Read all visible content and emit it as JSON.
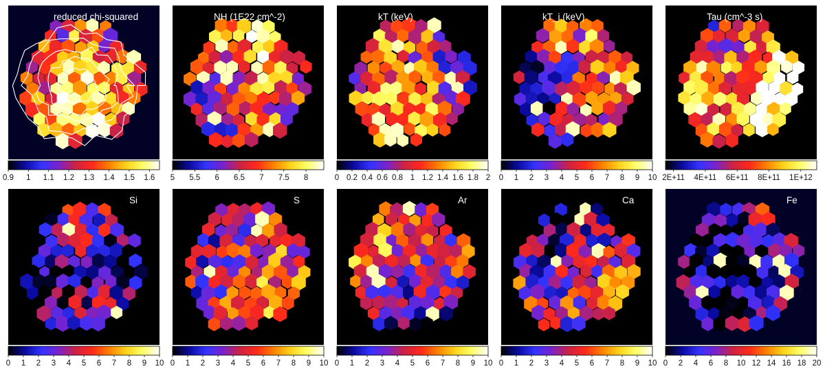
{
  "chart_data": [
    {
      "type": "heatmap",
      "title": "reduced chi-squared",
      "colorbar": {
        "min": 0.9,
        "max": 1.65,
        "ticks": [
          0.9,
          1,
          1.1,
          1.2,
          1.3,
          1.4,
          1.5,
          1.6
        ],
        "tick_labels": [
          "0.9",
          "1",
          "1.1",
          "1.2",
          "1.3",
          "1.4",
          "1.5",
          "1.6"
        ]
      },
      "contours": true,
      "seed": 11,
      "bias": 0.55
    },
    {
      "type": "heatmap",
      "title": "NH (1E22 cm^-2)",
      "colorbar": {
        "min": 5,
        "max": 8.4,
        "ticks": [
          5,
          5.5,
          6,
          6.5,
          7,
          7.5,
          8
        ],
        "tick_labels": [
          "5",
          "5.5",
          "6",
          "6.5",
          "7",
          "7.5",
          "8"
        ]
      },
      "seed": 23,
      "bias": 0.55
    },
    {
      "type": "heatmap",
      "title": "kT (keV)",
      "colorbar": {
        "min": 0,
        "max": 2,
        "ticks": [
          0,
          0.2,
          0.4,
          0.6,
          0.8,
          1,
          1.2,
          1.4,
          1.6,
          1.8,
          2
        ],
        "tick_labels": [
          "0",
          "0.2",
          "0.4",
          "0.6",
          "0.8",
          "1",
          "1.2",
          "1.4",
          "1.6",
          "1.8",
          "2"
        ]
      },
      "seed": 37,
      "bias": 0.6
    },
    {
      "type": "heatmap",
      "title": "kT_i (keV)",
      "colorbar": {
        "min": 0,
        "max": 10,
        "ticks": [
          0,
          1,
          2,
          3,
          4,
          5,
          6,
          7,
          8,
          9,
          10
        ],
        "tick_labels": [
          "0",
          "1",
          "2",
          "3",
          "4",
          "5",
          "6",
          "7",
          "8",
          "9",
          "10"
        ]
      },
      "seed": 41,
      "bias": 0.5
    },
    {
      "type": "heatmap",
      "title": "Tau (cm^-3 s)",
      "colorbar": {
        "min": 150000000000.0,
        "max": 1100000000000.0,
        "ticks": [
          200000000000.0,
          400000000000.0,
          600000000000.0,
          800000000000.0,
          1000000000000.0
        ],
        "tick_labels": [
          "2E+11",
          "4E+11",
          "6E+11",
          "8E+11",
          "1E+12"
        ]
      },
      "seed": 53,
      "bias": 0.7
    },
    {
      "type": "heatmap",
      "title": "Si",
      "colorbar": {
        "min": 0,
        "max": 10,
        "ticks": [
          0,
          1,
          2,
          3,
          4,
          5,
          6,
          7,
          8,
          9,
          10
        ],
        "tick_labels": [
          "0",
          "1",
          "2",
          "3",
          "4",
          "5",
          "6",
          "7",
          "8",
          "9",
          "10"
        ]
      },
      "seed": 61,
      "bias": 0.25
    },
    {
      "type": "heatmap",
      "title": "S",
      "colorbar": {
        "min": 0,
        "max": 10,
        "ticks": [
          0,
          1,
          2,
          3,
          4,
          5,
          6,
          7,
          8,
          9,
          10
        ],
        "tick_labels": [
          "0",
          "1",
          "2",
          "3",
          "4",
          "5",
          "6",
          "7",
          "8",
          "9",
          "10"
        ]
      },
      "seed": 73,
      "bias": 0.38
    },
    {
      "type": "heatmap",
      "title": "Ar",
      "colorbar": {
        "min": 0,
        "max": 10,
        "ticks": [
          0,
          1,
          2,
          3,
          4,
          5,
          6,
          7,
          8,
          9,
          10
        ],
        "tick_labels": [
          "0",
          "1",
          "2",
          "3",
          "4",
          "5",
          "6",
          "7",
          "8",
          "9",
          "10"
        ]
      },
      "seed": 89,
      "bias": 0.45
    },
    {
      "type": "heatmap",
      "title": "Ca",
      "colorbar": {
        "min": 0,
        "max": 10,
        "ticks": [
          0,
          1,
          2,
          3,
          4,
          5,
          6,
          7,
          8,
          9,
          10
        ],
        "tick_labels": [
          "0",
          "1",
          "2",
          "3",
          "4",
          "5",
          "6",
          "7",
          "8",
          "9",
          "10"
        ]
      },
      "seed": 97,
      "bias": 0.42
    },
    {
      "type": "heatmap",
      "title": "Fe",
      "colorbar": {
        "min": 0,
        "max": 20,
        "ticks": [
          0,
          2,
          4,
          6,
          8,
          10,
          12,
          14,
          16,
          18,
          20
        ],
        "tick_labels": [
          "0",
          "2",
          "4",
          "6",
          "8",
          "10",
          "12",
          "14",
          "16",
          "18",
          "20"
        ]
      },
      "seed": 103,
      "bias": 0.3
    }
  ],
  "colormap_stops": [
    "#000000",
    "#0a0aa0",
    "#3333ff",
    "#7a22cc",
    "#cc2244",
    "#ff2a1a",
    "#ff8000",
    "#ffd21a",
    "#ffff66",
    "#ffffff"
  ]
}
